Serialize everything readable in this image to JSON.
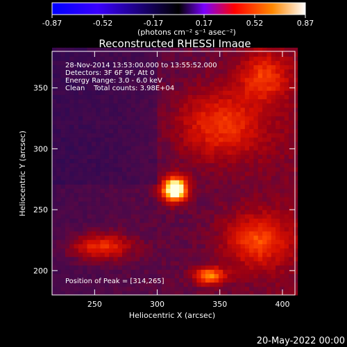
{
  "chart_data": {
    "type": "heatmap",
    "title": "Reconstructed RHESSI Image",
    "xlabel": "Heliocentric X (arcsec)",
    "ylabel": "Heliocentric Y (arcsec)",
    "xlim": [
      216,
      410
    ],
    "ylim": [
      180,
      380
    ],
    "x_ticks": [
      250,
      300,
      350,
      400
    ],
    "y_ticks": [
      200,
      250,
      300,
      350
    ],
    "colorbar": {
      "min": -0.87,
      "max": 0.87,
      "ticks": [
        "-0.87",
        "-0.52",
        "-0.17",
        "0.17",
        "0.52",
        "0.87"
      ],
      "units": "(photons cm⁻² s⁻¹ asec⁻²)",
      "colormap": [
        "#0000ff",
        "#3a00ff",
        "#000000",
        "#7a00ff",
        "#ff0000",
        "#ff8800",
        "#ffffff"
      ]
    },
    "annotations": [
      "28-Nov-2014 13:53:00.000 to 13:55:52.000",
      "Detectors: 3F 6F 9F, Att 0",
      "Energy Range: 3.0 - 6.0 keV",
      "Clean    Total counts: 3.98E+04"
    ],
    "peak_label": "Position of Peak = [314,265]",
    "peak": {
      "x": 314,
      "y": 265,
      "value": 0.87
    },
    "sources": [
      {
        "x": 314,
        "y": 267,
        "value": 0.87,
        "sx": 7,
        "sy": 7
      },
      {
        "x": 342,
        "y": 196,
        "value": 0.45,
        "sx": 9,
        "sy": 5
      },
      {
        "x": 255,
        "y": 220,
        "value": 0.35,
        "sx": 18,
        "sy": 8
      },
      {
        "x": 380,
        "y": 225,
        "value": 0.32,
        "sx": 18,
        "sy": 15
      },
      {
        "x": 350,
        "y": 320,
        "value": 0.3,
        "sx": 25,
        "sy": 20
      },
      {
        "x": 385,
        "y": 360,
        "value": 0.28,
        "sx": 14,
        "sy": 14
      }
    ]
  },
  "footer": {
    "date": "20-May-2022 00:00"
  }
}
